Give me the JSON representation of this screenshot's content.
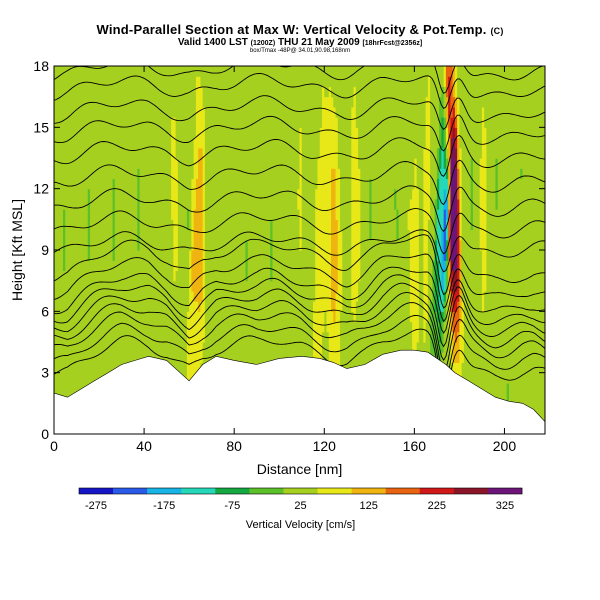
{
  "title": {
    "main": "Wind-Parallel Section at Max W: Vertical Velocity & Pot.Temp.",
    "copyright_mark": "(C)",
    "sub_prefix": "Valid 1400 LST",
    "sub_code": "(1200Z)",
    "sub_date": "THU 21 May 2009",
    "sub_fcst": "[18hrFcst@2356z]",
    "note": "box/Tmax -48P@ 34.01,90.98,168nm"
  },
  "chart_data": {
    "type": "heatmap",
    "xlabel": "Distance [nm]",
    "ylabel": "Height [Kft MSL]",
    "xlim": [
      0,
      218
    ],
    "ylim": [
      0,
      18
    ],
    "x_ticks": [
      0,
      40,
      80,
      120,
      160,
      200
    ],
    "y_ticks": [
      0,
      3,
      6,
      9,
      12,
      15,
      18
    ],
    "colorbar": {
      "label": "Vertical Velocity [cm/s]",
      "min": -300,
      "max": 350,
      "tick_labels": [
        "-275",
        "-175",
        "-75",
        "25",
        "125",
        "225",
        "325"
      ],
      "colors": [
        "#1515c8",
        "#2a5ae8",
        "#18b4e6",
        "#26d8b8",
        "#14a840",
        "#5cc028",
        "#a6d020",
        "#e8e818",
        "#f0b410",
        "#e86410",
        "#d01818",
        "#8c1428",
        "#6c1478"
      ]
    },
    "shaded_field": "Vertical Velocity [cm/s]",
    "contour_field": "Potential Temperature",
    "updraft_bands": [
      {
        "x": 52,
        "w": 2.5,
        "peak": 40
      },
      {
        "x": 62,
        "w": 3,
        "peak": 95
      },
      {
        "x": 65,
        "w": 2,
        "peak": 65
      },
      {
        "x": 108,
        "w": 2,
        "peak": 40
      },
      {
        "x": 118,
        "w": 2.5,
        "peak": 70
      },
      {
        "x": 124,
        "w": 3,
        "peak": 95
      },
      {
        "x": 133,
        "w": 2,
        "peak": 55
      },
      {
        "x": 160,
        "w": 2,
        "peak": 50
      },
      {
        "x": 165,
        "w": 2,
        "peak": 60
      },
      {
        "x": 177,
        "w": 1.6,
        "peak": 260
      },
      {
        "x": 179,
        "w": 1.8,
        "peak": 340
      },
      {
        "x": 190,
        "w": 2,
        "peak": 45
      }
    ],
    "downdraft_bands": [
      {
        "x": 172,
        "w": 1.5,
        "peak": -280
      },
      {
        "x": 169,
        "w": 1.6,
        "peak": -150
      },
      {
        "x": 58,
        "w": 1.6,
        "peak": -45
      }
    ],
    "terrain": [
      [
        0,
        2.0
      ],
      [
        6,
        1.8
      ],
      [
        12,
        2.2
      ],
      [
        18,
        2.6
      ],
      [
        24,
        3.0
      ],
      [
        30,
        3.4
      ],
      [
        36,
        3.6
      ],
      [
        42,
        3.8
      ],
      [
        50,
        3.6
      ],
      [
        56,
        3.0
      ],
      [
        60,
        2.6
      ],
      [
        66,
        3.4
      ],
      [
        72,
        3.8
      ],
      [
        80,
        3.6
      ],
      [
        90,
        3.4
      ],
      [
        100,
        3.7
      ],
      [
        110,
        3.8
      ],
      [
        118,
        3.7
      ],
      [
        124,
        3.5
      ],
      [
        130,
        3.2
      ],
      [
        138,
        3.4
      ],
      [
        146,
        3.9
      ],
      [
        154,
        4.1
      ],
      [
        160,
        4.1
      ],
      [
        166,
        4.0
      ],
      [
        170,
        3.7
      ],
      [
        174,
        3.4
      ],
      [
        178,
        3.0
      ],
      [
        184,
        2.6
      ],
      [
        190,
        2.2
      ],
      [
        196,
        1.8
      ],
      [
        202,
        1.6
      ],
      [
        208,
        1.5
      ],
      [
        213,
        1.2
      ],
      [
        218,
        0.6
      ]
    ],
    "isentrope_base_heights": [
      3.6,
      4.2,
      4.8,
      5.3,
      5.8,
      6.3,
      6.8,
      7.5,
      8.3,
      9.2,
      10.2,
      11.3,
      12.5,
      13.7,
      14.8,
      15.8,
      16.9,
      17.8
    ]
  }
}
